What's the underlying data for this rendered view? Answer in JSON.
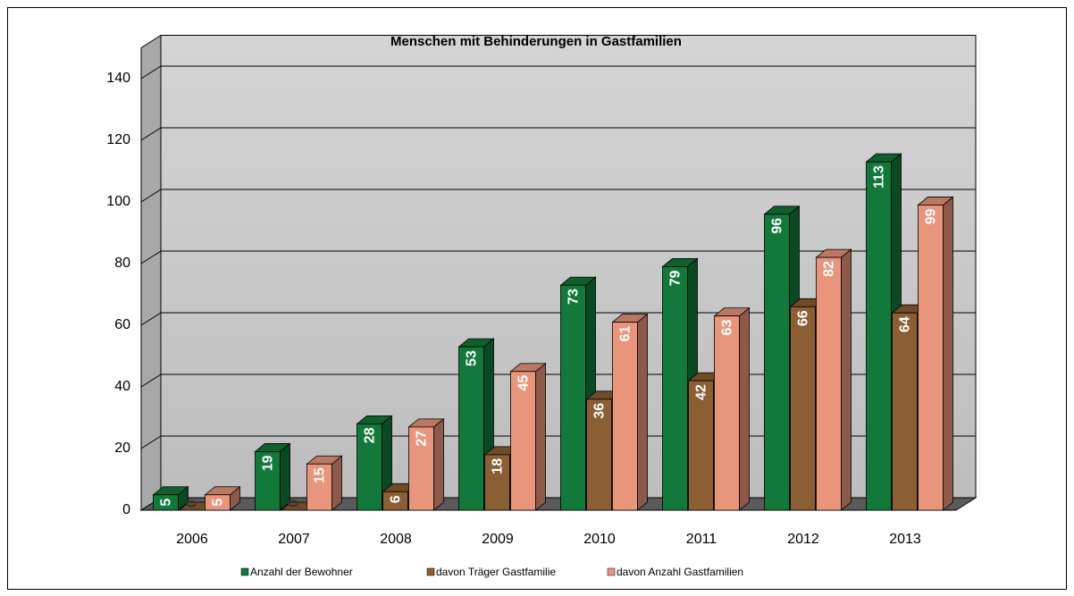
{
  "chart_data": {
    "type": "bar3d",
    "title": "Menschen mit Behinderungen  in Gastfamilien",
    "categories": [
      "2006",
      "2007",
      "2008",
      "2009",
      "2010",
      "2011",
      "2012",
      "2013"
    ],
    "series": [
      {
        "name": "Anzahl der Bewohner",
        "color": "#12793a",
        "values": [
          5,
          19,
          28,
          53,
          73,
          79,
          96,
          113
        ]
      },
      {
        "name": "davon Träger Gastfamilie",
        "color": "#8b5e34",
        "values": [
          0,
          0,
          6,
          18,
          36,
          42,
          66,
          64
        ]
      },
      {
        "name": "davon Anzahl Gastfamilien",
        "color": "#e9957b",
        "values": [
          5,
          15,
          27,
          45,
          61,
          63,
          82,
          99
        ]
      }
    ],
    "ylim": [
      0,
      150
    ],
    "yticks": [
      0,
      20,
      40,
      60,
      80,
      100,
      120,
      140
    ],
    "grid": true,
    "legend": "bottom"
  }
}
